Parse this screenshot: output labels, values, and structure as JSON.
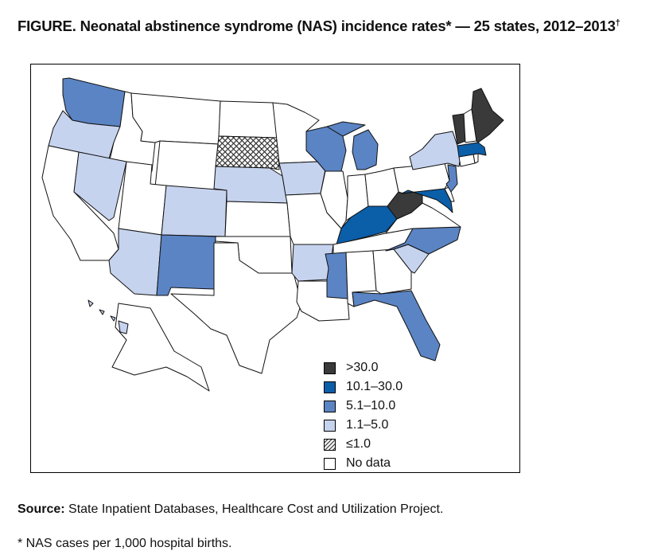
{
  "figure": {
    "title_label": "FIGURE.",
    "title_text": " Neonatal abstinence syndrome (NAS) incidence rates* — 25 states, 2012–2013",
    "title_mark": "†"
  },
  "legend": {
    "items": [
      {
        "label": ">30.0",
        "color": "#3a3a3a",
        "pattern": "solid"
      },
      {
        "label": "10.1–30.0",
        "color": "#0b5ea8",
        "pattern": "solid"
      },
      {
        "label": "5.1–10.0",
        "color": "#5b84c4",
        "pattern": "solid"
      },
      {
        "label": "1.1–5.0",
        "color": "#c6d3ee",
        "pattern": "solid"
      },
      {
        "label": "≤1.0",
        "color": "#ffffff",
        "pattern": "hatched"
      },
      {
        "label": "No data",
        "color": "#ffffff",
        "pattern": "solid"
      }
    ]
  },
  "map_data": {
    "type": "choropleth",
    "region": "United States",
    "states": {
      "ME": ">30.0",
      "VT": ">30.0",
      "WV": ">30.0",
      "KY": "10.1–30.0",
      "MD": "10.1–30.0",
      "MA": "10.1–30.0",
      "WA": "5.1–10.0",
      "WI": "5.1–10.0",
      "MI": "5.1–10.0",
      "NM": "5.1–10.0",
      "NJ": "5.1–10.0",
      "NC": "5.1–10.0",
      "FL": "5.1–10.0",
      "MS": "5.1–10.0",
      "OR": "1.1–5.0",
      "NV": "1.1–5.0",
      "AZ": "1.1–5.0",
      "CO": "1.1–5.0",
      "NE": "1.1–5.0",
      "IA": "1.1–5.0",
      "AR": "1.1–5.0",
      "SC": "1.1–5.0",
      "NY": "1.1–5.0",
      "HI": "1.1–5.0",
      "SD": "≤1.0"
    }
  },
  "source": {
    "label": "Source:",
    "text": " State Inpatient Databases, Healthcare Cost and Utilization Project."
  },
  "footnote": {
    "text": "* NAS cases per 1,000 hospital births."
  }
}
